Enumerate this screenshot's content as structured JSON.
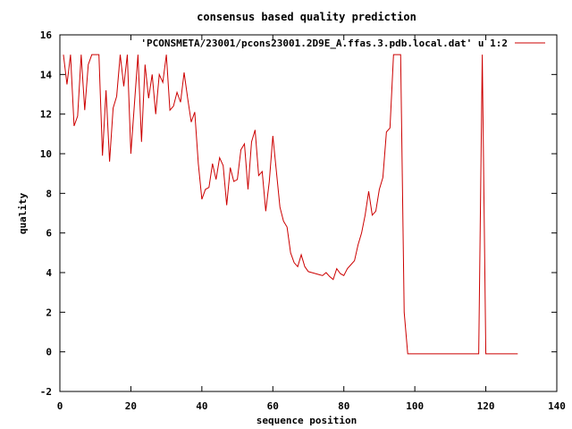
{
  "chart_data": {
    "type": "line",
    "title": "consensus based quality prediction",
    "xlabel": "sequence position",
    "ylabel": "quality",
    "xlim": [
      0,
      140
    ],
    "ylim": [
      -2,
      16
    ],
    "xticks": [
      "0",
      "20",
      "40",
      "60",
      "80",
      "100",
      "120",
      "140"
    ],
    "yticks": [
      "-2",
      "0",
      "2",
      "4",
      "6",
      "8",
      "10",
      "12",
      "14",
      "16"
    ],
    "grid": false,
    "legend_position": "top-right",
    "line_color": "#cc0000",
    "series": [
      {
        "name": "'PCONSMETA/23001/pcons23001.2D9E_A.ffas.3.pdb.local.dat' u 1:2",
        "x": [
          1,
          2,
          3,
          4,
          5,
          6,
          7,
          8,
          9,
          10,
          11,
          12,
          13,
          14,
          15,
          16,
          17,
          18,
          19,
          20,
          21,
          22,
          23,
          24,
          25,
          26,
          27,
          28,
          29,
          30,
          31,
          32,
          33,
          34,
          35,
          36,
          37,
          38,
          39,
          40,
          41,
          42,
          43,
          44,
          45,
          46,
          47,
          48,
          49,
          50,
          51,
          52,
          53,
          54,
          55,
          56,
          57,
          58,
          59,
          60,
          61,
          62,
          63,
          64,
          65,
          66,
          67,
          68,
          69,
          70,
          71,
          72,
          73,
          74,
          75,
          76,
          77,
          78,
          79,
          80,
          81,
          82,
          83,
          84,
          85,
          86,
          87,
          88,
          89,
          90,
          91,
          92,
          93,
          94,
          95,
          96,
          97,
          98,
          99,
          100,
          101,
          102,
          103,
          104,
          105,
          106,
          107,
          108,
          109,
          110,
          111,
          112,
          113,
          114,
          115,
          116,
          117,
          118,
          119,
          120,
          121,
          122,
          123,
          124,
          125,
          126,
          127,
          128,
          129
        ],
        "y": [
          15,
          13.5,
          15,
          11.4,
          11.9,
          15,
          12.2,
          14.5,
          15,
          15,
          15,
          9.9,
          13.2,
          9.6,
          12.3,
          12.9,
          15,
          13.4,
          15,
          10,
          12.5,
          15,
          10.6,
          14.5,
          12.8,
          14,
          12,
          14,
          13.6,
          15,
          12.2,
          12.4,
          13.1,
          12.6,
          14.1,
          12.8,
          11.6,
          12.1,
          9.5,
          7.7,
          8.2,
          8.3,
          9.5,
          8.7,
          9.8,
          9.4,
          7.4,
          9.3,
          8.6,
          8.7,
          10.2,
          10.5,
          8.2,
          10.6,
          11.2,
          8.9,
          9.1,
          7.1,
          8.6,
          10.9,
          9.1,
          7.3,
          6.6,
          6.3,
          5,
          4.5,
          4.3,
          4.9,
          4.3,
          4.05,
          4,
          3.95,
          3.9,
          3.85,
          4,
          3.8,
          3.65,
          4.2,
          3.95,
          3.85,
          4.2,
          4.4,
          4.6,
          5.4,
          6,
          6.9,
          8.1,
          6.9,
          7.1,
          8.2,
          8.8,
          11.1,
          11.3,
          15,
          15,
          15,
          2,
          -0.1,
          -0.1,
          -0.1,
          -0.1,
          -0.1,
          -0.1,
          -0.1,
          -0.1,
          -0.1,
          -0.1,
          -0.1,
          -0.1,
          -0.1,
          -0.1,
          -0.1,
          -0.1,
          -0.1,
          -0.1,
          -0.1,
          -0.1,
          -0.1,
          15,
          -0.1,
          -0.1,
          -0.1,
          -0.1,
          -0.1,
          -0.1,
          -0.1,
          -0.1,
          -0.1,
          -0.1
        ]
      }
    ]
  }
}
